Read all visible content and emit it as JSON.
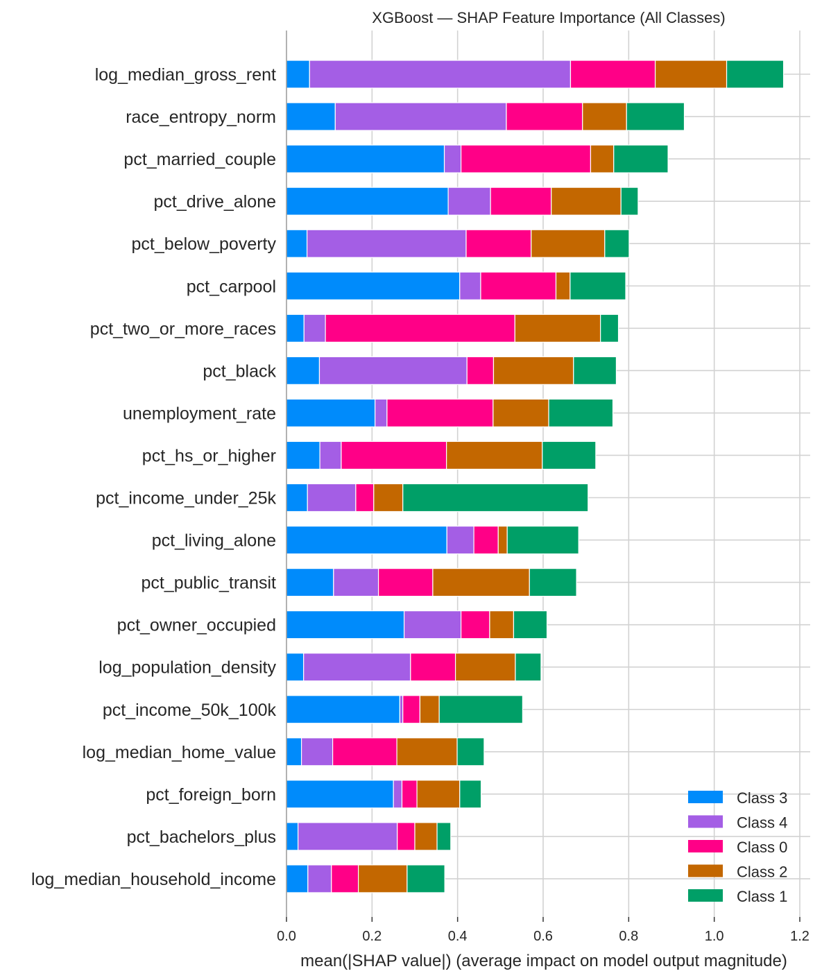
{
  "chart_data": {
    "type": "bar",
    "orientation": "horizontal",
    "stacked": true,
    "title": "XGBoost — SHAP Feature Importance (All Classes)",
    "xlabel": "mean(|SHAP value|) (average impact on model output magnitude)",
    "ylabel": "",
    "xlim": [
      0,
      1.22
    ],
    "xticks": [
      "0.0",
      "0.2",
      "0.4",
      "0.6",
      "0.8",
      "1.0",
      "1.2"
    ],
    "xtick_values": [
      0.0,
      0.2,
      0.4,
      0.6,
      0.8,
      1.0,
      1.2
    ],
    "grid": true,
    "legend_position": "bottom-right",
    "categories": [
      "log_median_gross_rent",
      "race_entropy_norm",
      "pct_married_couple",
      "pct_drive_alone",
      "pct_below_poverty",
      "pct_carpool",
      "pct_two_or_more_races",
      "pct_black",
      "unemployment_rate",
      "pct_hs_or_higher",
      "pct_income_under_25k",
      "pct_living_alone",
      "pct_public_transit",
      "pct_owner_occupied",
      "log_population_density",
      "pct_income_50k_100k",
      "log_median_home_value",
      "pct_foreign_born",
      "pct_bachelors_plus",
      "log_median_household_income"
    ],
    "series": [
      {
        "name": "Class 3",
        "color": "#008bfb",
        "values": [
          0.054,
          0.114,
          0.369,
          0.378,
          0.048,
          0.405,
          0.041,
          0.077,
          0.207,
          0.078,
          0.049,
          0.375,
          0.11,
          0.275,
          0.04,
          0.265,
          0.035,
          0.25,
          0.027,
          0.05
        ]
      },
      {
        "name": "Class 4",
        "color": "#a45ee5",
        "values": [
          0.61,
          0.4,
          0.039,
          0.099,
          0.372,
          0.049,
          0.05,
          0.345,
          0.028,
          0.05,
          0.113,
          0.063,
          0.105,
          0.133,
          0.25,
          0.007,
          0.073,
          0.02,
          0.232,
          0.055
        ]
      },
      {
        "name": "Class 0",
        "color": "#ff0087",
        "values": [
          0.198,
          0.178,
          0.303,
          0.142,
          0.152,
          0.176,
          0.443,
          0.062,
          0.248,
          0.246,
          0.042,
          0.057,
          0.127,
          0.067,
          0.105,
          0.04,
          0.15,
          0.035,
          0.041,
          0.063
        ]
      },
      {
        "name": "Class 2",
        "color": "#c36700",
        "values": [
          0.167,
          0.103,
          0.054,
          0.163,
          0.172,
          0.033,
          0.2,
          0.187,
          0.13,
          0.224,
          0.068,
          0.021,
          0.226,
          0.056,
          0.14,
          0.045,
          0.141,
          0.1,
          0.052,
          0.114
        ]
      },
      {
        "name": "Class 1",
        "color": "#009f67",
        "values": [
          0.133,
          0.135,
          0.127,
          0.04,
          0.057,
          0.13,
          0.042,
          0.1,
          0.15,
          0.125,
          0.433,
          0.167,
          0.11,
          0.078,
          0.06,
          0.195,
          0.063,
          0.05,
          0.032,
          0.088
        ]
      }
    ],
    "legend_order": [
      "Class 3",
      "Class 4",
      "Class 0",
      "Class 2",
      "Class 1"
    ]
  }
}
